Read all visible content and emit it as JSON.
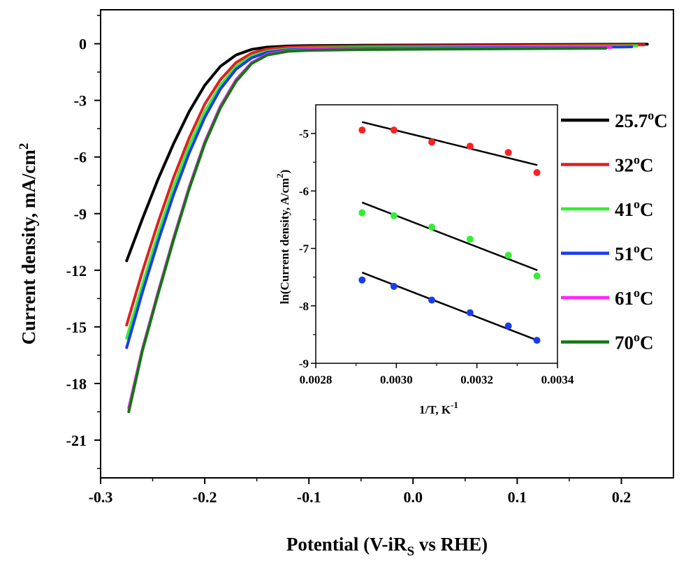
{
  "chart_data": [
    {
      "type": "line",
      "xlabel": "Potential (V-iR",
      "xlabel_sub": "S",
      "xlabel_tail": " vs RHE)",
      "ylabel": "Current density, mA/cm",
      "ylabel_sup": "2",
      "xlim": [
        -0.3,
        0.25
      ],
      "ylim": [
        -23,
        1.8
      ],
      "xticks": [
        -0.3,
        -0.2,
        -0.1,
        0.0,
        0.1,
        0.2
      ],
      "xtick_labels": [
        "-0.3",
        "-0.2",
        "-0.1",
        "0.0",
        "0.1",
        "0.2"
      ],
      "yticks": [
        0,
        -3,
        -6,
        -9,
        -12,
        -15,
        -18,
        -21
      ],
      "ytick_labels": [
        "0",
        "-3",
        "-6",
        "-9",
        "-12",
        "-15",
        "-18",
        "-21"
      ],
      "legend_position": "right",
      "series": [
        {
          "name": "25.7",
          "sup": "o",
          "unit": "C",
          "color": "#000000",
          "x": [
            -0.275,
            -0.26,
            -0.245,
            -0.23,
            -0.215,
            -0.2,
            -0.185,
            -0.17,
            -0.155,
            -0.14,
            -0.12,
            -0.1,
            -0.05,
            0.0,
            0.1,
            0.2,
            0.225
          ],
          "y": [
            -11.5,
            -9.3,
            -7.2,
            -5.3,
            -3.6,
            -2.2,
            -1.2,
            -0.6,
            -0.3,
            -0.18,
            -0.12,
            -0.1,
            -0.08,
            -0.07,
            -0.05,
            -0.03,
            -0.02
          ]
        },
        {
          "name": "32",
          "sup": "o",
          "unit": "C",
          "color": "#e02020",
          "x": [
            -0.275,
            -0.26,
            -0.245,
            -0.23,
            -0.215,
            -0.2,
            -0.185,
            -0.17,
            -0.155,
            -0.14,
            -0.12,
            -0.1,
            -0.05,
            0.0,
            0.1,
            0.2,
            0.222
          ],
          "y": [
            -14.9,
            -12.1,
            -9.5,
            -7.1,
            -5.0,
            -3.2,
            -1.9,
            -1.0,
            -0.5,
            -0.28,
            -0.18,
            -0.15,
            -0.12,
            -0.11,
            -0.09,
            -0.07,
            -0.06
          ]
        },
        {
          "name": "41",
          "sup": "o",
          "unit": "C",
          "color": "#33ee33",
          "x": [
            -0.275,
            -0.26,
            -0.245,
            -0.23,
            -0.215,
            -0.2,
            -0.185,
            -0.17,
            -0.155,
            -0.14,
            -0.12,
            -0.1,
            -0.05,
            0.0,
            0.1,
            0.2,
            0.215
          ],
          "y": [
            -15.6,
            -12.8,
            -10.1,
            -7.6,
            -5.4,
            -3.6,
            -2.2,
            -1.2,
            -0.65,
            -0.4,
            -0.28,
            -0.24,
            -0.2,
            -0.18,
            -0.15,
            -0.12,
            -0.11
          ]
        },
        {
          "name": "51",
          "sup": "o",
          "unit": "C",
          "color": "#1a3cf0",
          "x": [
            -0.275,
            -0.26,
            -0.245,
            -0.23,
            -0.215,
            -0.2,
            -0.185,
            -0.17,
            -0.155,
            -0.14,
            -0.12,
            -0.1,
            -0.05,
            0.0,
            0.1,
            0.2,
            0.21
          ],
          "y": [
            -16.1,
            -13.2,
            -10.5,
            -8.0,
            -5.8,
            -3.9,
            -2.4,
            -1.35,
            -0.75,
            -0.45,
            -0.32,
            -0.28,
            -0.24,
            -0.22,
            -0.19,
            -0.17,
            -0.16
          ]
        },
        {
          "name": "61",
          "sup": "o",
          "unit": "C",
          "color": "#ff22ff",
          "x": [
            -0.273,
            -0.26,
            -0.245,
            -0.23,
            -0.215,
            -0.2,
            -0.185,
            -0.17,
            -0.155,
            -0.14,
            -0.12,
            -0.1,
            -0.05,
            0.0,
            0.1,
            0.19
          ],
          "y": [
            -19.3,
            -16.2,
            -13.2,
            -10.3,
            -7.6,
            -5.2,
            -3.3,
            -1.9,
            -1.0,
            -0.55,
            -0.36,
            -0.31,
            -0.27,
            -0.25,
            -0.22,
            -0.2
          ]
        },
        {
          "name": "70",
          "sup": "o",
          "unit": "C",
          "color": "#117711",
          "x": [
            -0.273,
            -0.26,
            -0.245,
            -0.23,
            -0.215,
            -0.2,
            -0.185,
            -0.17,
            -0.155,
            -0.14,
            -0.12,
            -0.1,
            -0.05,
            0.0,
            0.1,
            0.185
          ],
          "y": [
            -19.5,
            -16.3,
            -13.3,
            -10.4,
            -7.7,
            -5.3,
            -3.4,
            -2.0,
            -1.05,
            -0.6,
            -0.4,
            -0.35,
            -0.31,
            -0.29,
            -0.26,
            -0.24
          ]
        }
      ]
    },
    {
      "type": "scatter",
      "xlabel": "1/T, K",
      "xlabel_sup": "-1",
      "ylabel": "ln(Current density, A/cm",
      "ylabel_sup": "2",
      "ylabel_tail": ")",
      "xlim": [
        0.0028,
        0.0034
      ],
      "ylim": [
        -9,
        -4.5
      ],
      "xticks": [
        0.0028,
        0.003,
        0.0032,
        0.0034
      ],
      "xtick_labels": [
        "0.0028",
        "0.0030",
        "0.0032",
        "0.0034"
      ],
      "yticks": [
        -5,
        -6,
        -7,
        -8,
        -9
      ],
      "ytick_labels": [
        "-5",
        "-6",
        "-7",
        "-8",
        "-9"
      ],
      "series": [
        {
          "color": "#ff2020",
          "x": [
            0.002915,
            0.002994,
            0.003088,
            0.003183,
            0.003278,
            0.003349
          ],
          "y": [
            -4.94,
            -4.94,
            -5.15,
            -5.22,
            -5.33,
            -5.68
          ],
          "fit": [
            [
              0.002915,
              -4.8
            ],
            [
              0.00335,
              -5.55
            ]
          ]
        },
        {
          "color": "#33ee33",
          "x": [
            0.002915,
            0.002994,
            0.003088,
            0.003183,
            0.003278,
            0.003349
          ],
          "y": [
            -6.38,
            -6.43,
            -6.63,
            -6.84,
            -7.12,
            -7.48
          ],
          "fit": [
            [
              0.002915,
              -6.2
            ],
            [
              0.00335,
              -7.38
            ]
          ]
        },
        {
          "color": "#1a3cf0",
          "x": [
            0.002915,
            0.002994,
            0.003088,
            0.003183,
            0.003278,
            0.003349
          ],
          "y": [
            -7.55,
            -7.66,
            -7.9,
            -8.12,
            -8.35,
            -8.6
          ],
          "fit": [
            [
              0.002915,
              -7.42
            ],
            [
              0.00335,
              -8.6
            ]
          ]
        }
      ]
    }
  ]
}
